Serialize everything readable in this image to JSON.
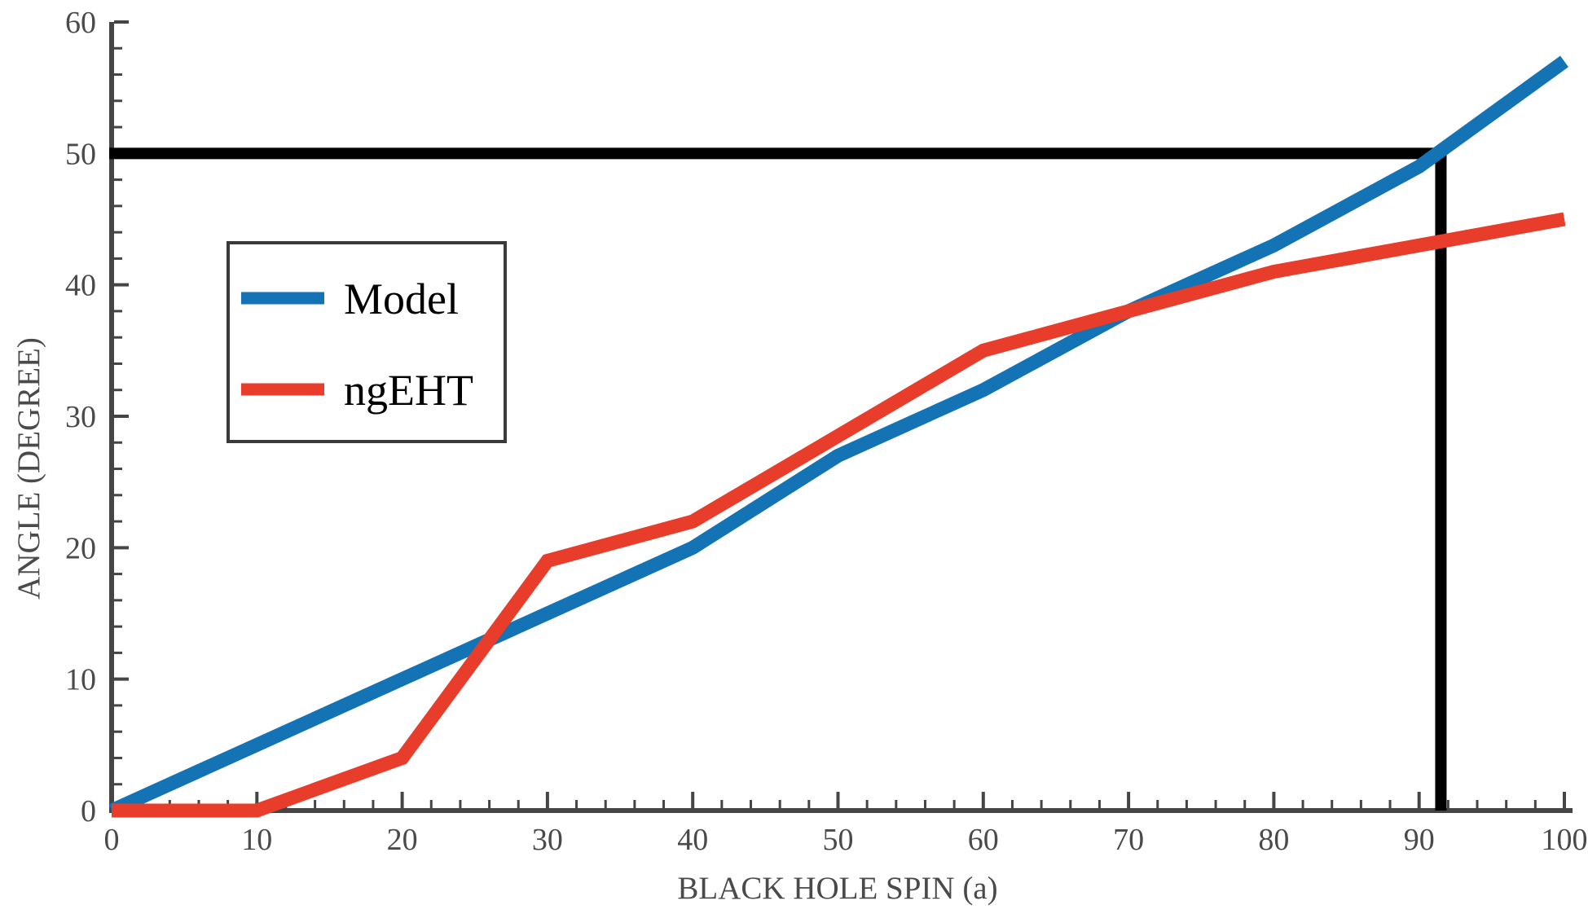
{
  "chart_data": {
    "type": "line",
    "title": "",
    "xlabel": "BLACK HOLE SPIN (a)",
    "ylabel": "ANGLE (DEGREE)",
    "x": [
      0,
      10,
      20,
      30,
      40,
      50,
      60,
      70,
      80,
      90,
      100
    ],
    "series": [
      {
        "name": "Model",
        "color": "#1373b4",
        "values": [
          0,
          5,
          10,
          15,
          20,
          27,
          32,
          38,
          43,
          49,
          57
        ]
      },
      {
        "name": "ngEHT",
        "color": "#e73d2a",
        "values": [
          0,
          0,
          4,
          19,
          22,
          28.5,
          35,
          38,
          41,
          43,
          45
        ]
      }
    ],
    "xlim": [
      0,
      100
    ],
    "ylim": [
      0,
      60
    ],
    "xticks": [
      0,
      10,
      20,
      30,
      40,
      50,
      60,
      70,
      80,
      90,
      100
    ],
    "yticks": [
      0,
      10,
      20,
      30,
      40,
      50,
      60
    ],
    "minor_tick_step": 2,
    "grid": false,
    "legend_position": "upper-left",
    "axis_color": "#454545",
    "tick_label_color": "#4a4a4a",
    "annotations": {
      "crosshair": {
        "x": 91.5,
        "y": 50,
        "color": "#000000",
        "note": "black guide lines marking model angle 50 deg at spin ~91"
      }
    }
  }
}
